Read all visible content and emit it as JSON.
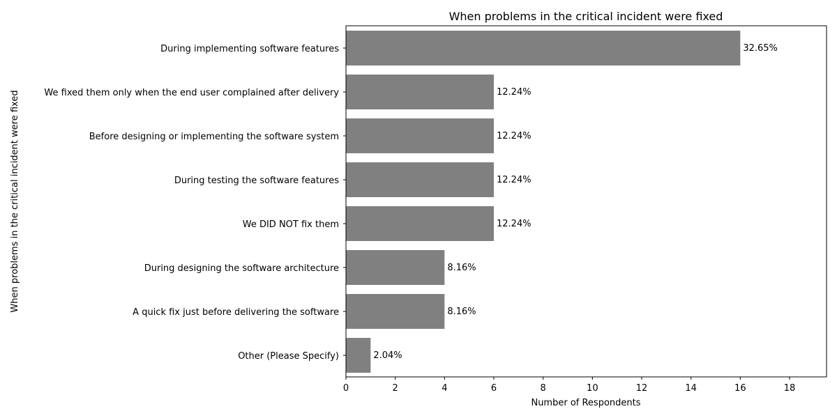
{
  "chart_data": {
    "type": "bar",
    "orientation": "horizontal",
    "title": "When problems in the critical incident were fixed",
    "xlabel": "Number of Respondents",
    "ylabel": "When problems in the critical incident were fixed",
    "categories": [
      "During implementing software features",
      "We fixed them only when the end user complained after delivery",
      "Before designing or implementing the software system",
      "During testing the software features",
      "We DID NOT fix them",
      "During designing the software architecture",
      "A quick fix just before delivering the software",
      "Other (Please Specify)"
    ],
    "values": [
      16,
      6,
      6,
      6,
      6,
      4,
      4,
      1
    ],
    "data_labels": [
      "32.65%",
      "12.24%",
      "12.24%",
      "12.24%",
      "12.24%",
      "8.16%",
      "8.16%",
      "2.04%"
    ],
    "xlim": [
      0,
      19.5
    ],
    "xticks": [
      0,
      2,
      4,
      6,
      8,
      10,
      12,
      14,
      16,
      18
    ],
    "grid": false,
    "bar_color": "#808080"
  }
}
